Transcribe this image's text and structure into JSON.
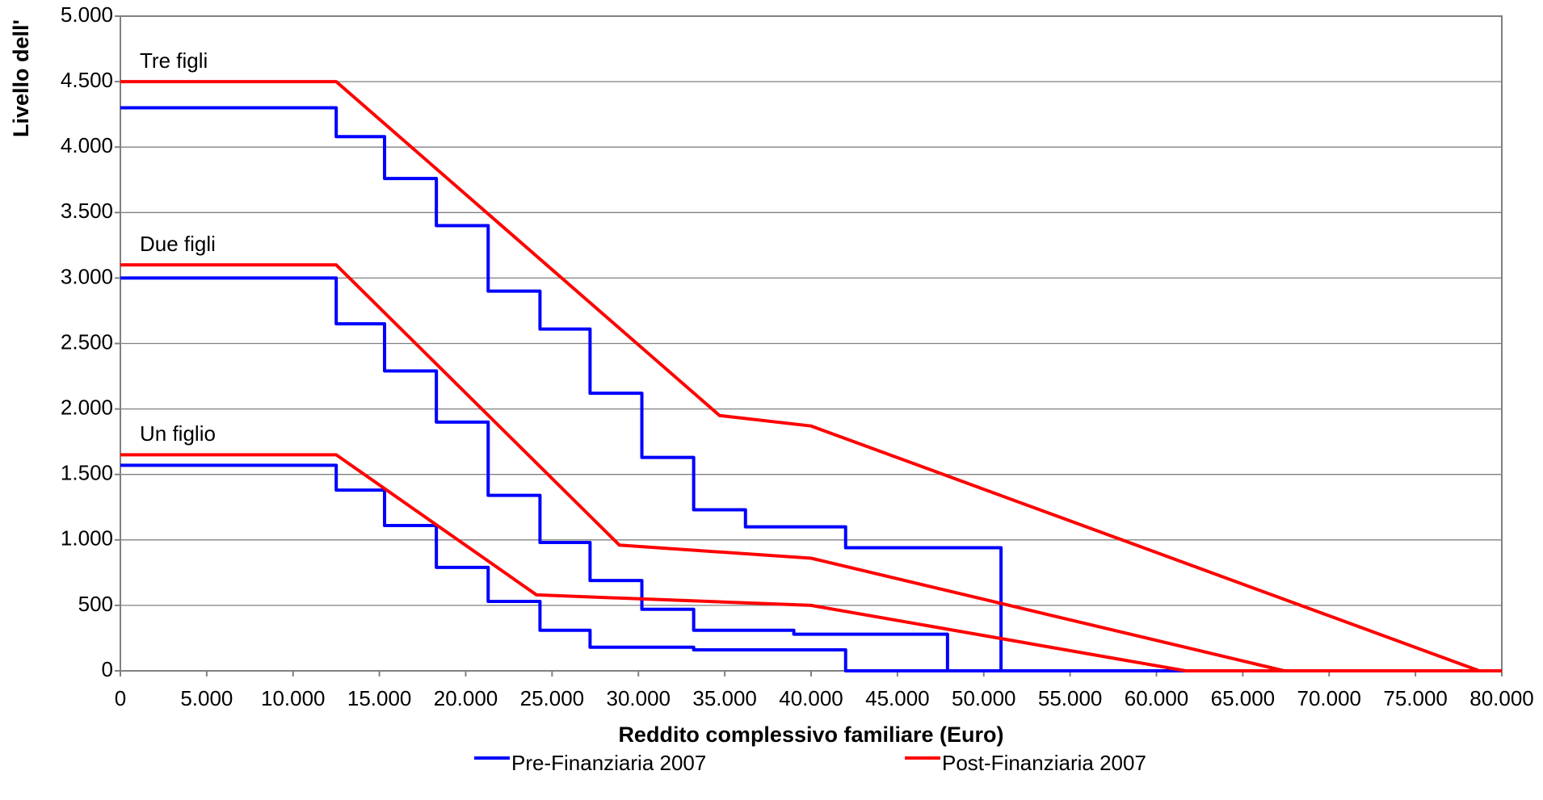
{
  "chart_data": {
    "type": "line",
    "xlabel": "Reddito complessivo familiare (Euro)",
    "ylabel": "Livello dell'",
    "xlim": [
      0,
      80000
    ],
    "ylim": [
      0,
      5000
    ],
    "xticks": [
      0,
      {
        "value": 5000,
        "label": "5.000"
      },
      {
        "value": 10000,
        "label": "10.000"
      },
      {
        "value": 15000,
        "label": "15.000"
      },
      {
        "value": 20000,
        "label": "20.000"
      },
      {
        "value": 25000,
        "label": "25.000"
      },
      {
        "value": 30000,
        "label": "30.000"
      },
      {
        "value": 35000,
        "label": "35.000"
      },
      {
        "value": 40000,
        "label": "40.000"
      },
      {
        "value": 45000,
        "label": "45.000"
      },
      {
        "value": 50000,
        "label": "50.000"
      },
      {
        "value": 55000,
        "label": "55.000"
      },
      {
        "value": 60000,
        "label": "60.000"
      },
      {
        "value": 65000,
        "label": "65.000"
      },
      {
        "value": 70000,
        "label": "70.000"
      },
      {
        "value": 75000,
        "label": "75.000"
      },
      {
        "value": 80000,
        "label": "80.000"
      }
    ],
    "yticks": [
      0,
      {
        "value": 500,
        "label": "500"
      },
      {
        "value": 1000,
        "label": "1.000"
      },
      {
        "value": 1500,
        "label": "1.500"
      },
      {
        "value": 2000,
        "label": "2.000"
      },
      {
        "value": 2500,
        "label": "2.500"
      },
      {
        "value": 3000,
        "label": "3.000"
      },
      {
        "value": 3500,
        "label": "3.500"
      },
      {
        "value": 4000,
        "label": "4.000"
      },
      {
        "value": 4500,
        "label": "4.500"
      },
      {
        "value": 5000,
        "label": "5.000"
      }
    ],
    "grid": true,
    "legend": "bottom",
    "annotations": [
      "Tre figli",
      "Due figli",
      "Un figlio"
    ],
    "series": [
      {
        "name": "Pre-Finanziaria 2007",
        "color": "#0000ff",
        "lines": [
          {
            "x": [
              0,
              12500,
              12500,
              15300,
              15300,
              18300,
              18300,
              21300,
              21300,
              24300,
              24300,
              27200,
              27200,
              30200,
              30200,
              33200,
              33200,
              36200,
              36200,
              42000,
              42000,
              51000,
              51000,
              80000
            ],
            "values": [
              4300,
              4300,
              4080,
              4080,
              3760,
              3760,
              3400,
              3400,
              2900,
              2900,
              2610,
              2610,
              2120,
              2120,
              1630,
              1630,
              1230,
              1230,
              1100,
              1100,
              940,
              940,
              0,
              0
            ]
          },
          {
            "x": [
              0,
              12500,
              12500,
              15300,
              15300,
              18300,
              18300,
              21300,
              21300,
              24300,
              24300,
              27200,
              27200,
              30200,
              30200,
              33200,
              33200,
              39000,
              39000,
              47900,
              47900,
              80000
            ],
            "values": [
              3000,
              3000,
              2650,
              2650,
              2290,
              2290,
              1900,
              1900,
              1340,
              1340,
              980,
              980,
              690,
              690,
              470,
              470,
              310,
              310,
              280,
              280,
              0,
              0
            ]
          },
          {
            "x": [
              0,
              12500,
              12500,
              15300,
              15300,
              18300,
              18300,
              21300,
              21300,
              24300,
              24300,
              27200,
              27200,
              33200,
              33200,
              42000,
              42000,
              80000
            ],
            "values": [
              1570,
              1570,
              1380,
              1380,
              1110,
              1110,
              790,
              790,
              530,
              530,
              310,
              310,
              180,
              180,
              160,
              160,
              0,
              0
            ]
          }
        ]
      },
      {
        "name": "Post-Finanziaria 2007",
        "color": "#ff0000",
        "lines": [
          {
            "x": [
              0,
              12500,
              34700,
              40000,
              78700,
              80000
            ],
            "values": [
              4500,
              4500,
              1950,
              1870,
              0,
              0
            ]
          },
          {
            "x": [
              0,
              12500,
              28900,
              40000,
              67400,
              80000
            ],
            "values": [
              3100,
              3100,
              960,
              860,
              0,
              0
            ]
          },
          {
            "x": [
              0,
              12500,
              24100,
              40000,
              61700,
              80000
            ],
            "values": [
              1650,
              1650,
              580,
              500,
              0,
              0
            ]
          }
        ]
      }
    ]
  }
}
